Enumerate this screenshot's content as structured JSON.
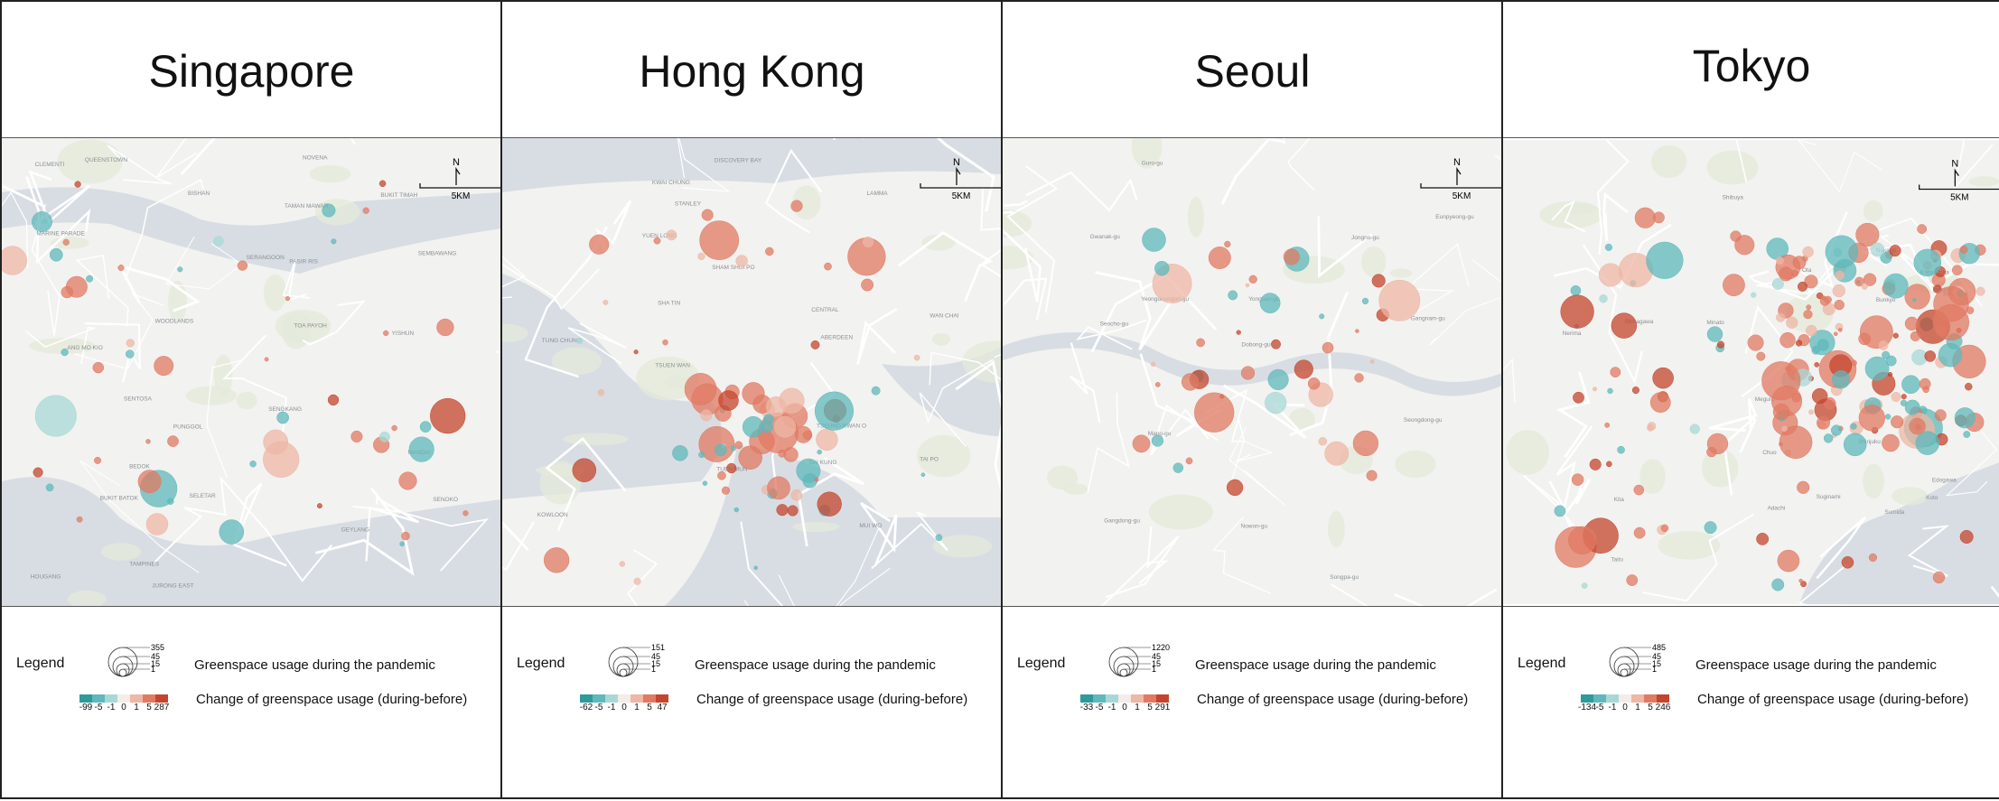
{
  "cities": [
    {
      "name": "Singapore",
      "legend": {
        "heading": "Legend",
        "size_values": [
          "355",
          "45",
          "15",
          "1"
        ],
        "size_label": "Greenspace usage during the pandemic",
        "color_ticks": [
          "-99",
          "-5",
          "-1",
          "0",
          "1",
          "5",
          "287"
        ],
        "color_label": "Change of greenspace usage (during-before)"
      },
      "map_labels": [
        "SENOKO",
        "SEMBAWANG",
        "WOODLANDS",
        "MANDAI",
        "YISHUN",
        "SELETAR",
        "BUKIT BATOK",
        "SENGKANG",
        "PUNGGOL",
        "ANG MO KIO",
        "BISHAN",
        "SERANGOON",
        "HOUGANG",
        "PASIR RIS",
        "TAMPINES",
        "BEDOK",
        "TOA PAYOH",
        "BUKIT TIMAH",
        "QUEENSTOWN",
        "GEYLANG",
        "NOVENA",
        "MARINE PARADE",
        "JURONG EAST",
        "CLEMENTI",
        "SENTOSA",
        "TAMAN MAWAR"
      ],
      "scale": {
        "north": "N",
        "label": "5KM"
      }
    },
    {
      "name": "Hong Kong",
      "legend": {
        "heading": "Legend",
        "size_values": [
          "151",
          "45",
          "15",
          "1"
        ],
        "size_label": "Greenspace usage during the pandemic",
        "color_ticks": [
          "-62",
          "-5",
          "-1",
          "0",
          "1",
          "5",
          "47"
        ],
        "color_label": "Change of greenspace usage (during-before)"
      },
      "map_labels": [
        "YUEN LONG",
        "TAI PO",
        "TUEN MUN",
        "SHA TIN",
        "TSUEN WAN",
        "KWAI CHUNG",
        "SAI KUNG",
        "SHAM SHUI PO",
        "KOWLOON",
        "TSEUNG KWAN O",
        "CENTRAL",
        "WAN CHAI",
        "ABERDEEN",
        "STANLEY",
        "DISCOVERY BAY",
        "TUNG CHUNG",
        "MUI WO",
        "LAMMA"
      ],
      "scale": {
        "north": "N",
        "label": "5KM"
      }
    },
    {
      "name": "Seoul",
      "legend": {
        "heading": "Legend",
        "size_values": [
          "1220",
          "45",
          "15",
          "1"
        ],
        "size_label": "Greenspace usage during the pandemic",
        "color_ticks": [
          "-33",
          "-5",
          "-1",
          "0",
          "1",
          "5",
          "291"
        ],
        "color_label": "Change of greenspace usage (during-before)"
      },
      "map_labels": [
        "Dobong-gu",
        "Nowon-gu",
        "Eunpyeong-gu",
        "Jongno-gu",
        "Mapo-gu",
        "Yongsan-gu",
        "Gangnam-gu",
        "Songpa-gu",
        "Gangdong-gu",
        "Yeongdeungpo-gu",
        "Gwanak-gu",
        "Guro-gu",
        "Seocho-gu",
        "Seongdong-gu"
      ],
      "scale": {
        "north": "N",
        "label": "5KM"
      }
    },
    {
      "name": "Tokyo",
      "legend": {
        "heading": "Legend",
        "size_values": [
          "485",
          "45",
          "15",
          "1"
        ],
        "size_label": "Greenspace usage during the pandemic",
        "color_ticks": [
          "-134",
          "-5",
          "-1",
          "0",
          "1",
          "5",
          "246"
        ],
        "color_label": "Change of greenspace usage (during-before)"
      },
      "map_labels": [
        "Nerima",
        "Itabashi",
        "Kita",
        "Adachi",
        "Katsushika",
        "Suginami",
        "Nakano",
        "Shinjuku",
        "Bunkyo",
        "Taito",
        "Sumida",
        "Edogawa",
        "Setagaya",
        "Shibuya",
        "Minato",
        "Chuo",
        "Koto",
        "Meguro",
        "Shinagawa",
        "Ota"
      ],
      "scale": {
        "north": "N",
        "label": "5KM"
      }
    }
  ],
  "colors": {
    "teal_dark": "#2f9a9c",
    "teal": "#5fb8bb",
    "teal_light": "#a8d8d6",
    "neutral": "#f3ece8",
    "salmon_light": "#eeb7a6",
    "salmon": "#e07a63",
    "red_dark": "#c4452e"
  }
}
